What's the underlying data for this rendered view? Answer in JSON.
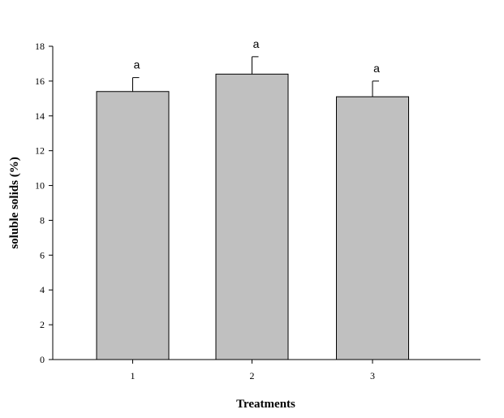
{
  "chart_data": {
    "type": "bar",
    "categories": [
      "1",
      "2",
      "3"
    ],
    "values": [
      15.4,
      16.4,
      15.1
    ],
    "errors": [
      0.8,
      1.0,
      0.9
    ],
    "significance_letters": [
      "a",
      "a",
      "a"
    ],
    "xlabel": "Treatments",
    "ylabel": "soluble solids (%)",
    "ylim": [
      0,
      18
    ],
    "yticks": [
      0,
      2,
      4,
      6,
      8,
      10,
      12,
      14,
      16,
      18
    ],
    "grid": false,
    "bar_color": "#c0c0c0",
    "edge_color": "#000000"
  }
}
